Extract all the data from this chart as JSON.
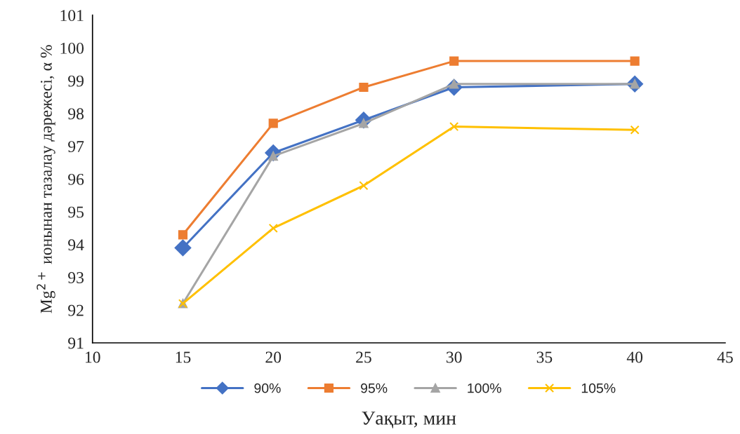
{
  "chart_data": {
    "type": "line",
    "xlabel": "Уақыт, мин",
    "ylabel": "Mg$^{2+}$ ионынан тазалау дәрежесі, α %",
    "x": [
      15,
      20,
      25,
      30,
      40
    ],
    "series": [
      {
        "name": "90%",
        "color": "#4472c4",
        "marker": "diamond",
        "values": [
          93.9,
          96.8,
          97.8,
          98.8,
          98.9
        ]
      },
      {
        "name": "95%",
        "color": "#ed7d31",
        "marker": "square",
        "values": [
          94.3,
          97.7,
          98.8,
          99.6,
          99.6
        ]
      },
      {
        "name": "100%",
        "color": "#a5a5a5",
        "marker": "triangle",
        "values": [
          92.2,
          96.7,
          97.7,
          98.9,
          98.9
        ]
      },
      {
        "name": "105%",
        "color": "#ffc000",
        "marker": "cross",
        "values": [
          92.2,
          94.5,
          95.8,
          97.6,
          97.5
        ]
      }
    ],
    "xlim": [
      10,
      45
    ],
    "xticks": [
      10,
      15,
      20,
      25,
      30,
      35,
      40,
      45
    ],
    "ylim": [
      91,
      101
    ],
    "yticks": [
      91,
      92,
      93,
      94,
      95,
      96,
      97,
      98,
      99,
      100,
      101
    ],
    "grid": false,
    "legend": "bottom",
    "line_style": "solid"
  }
}
